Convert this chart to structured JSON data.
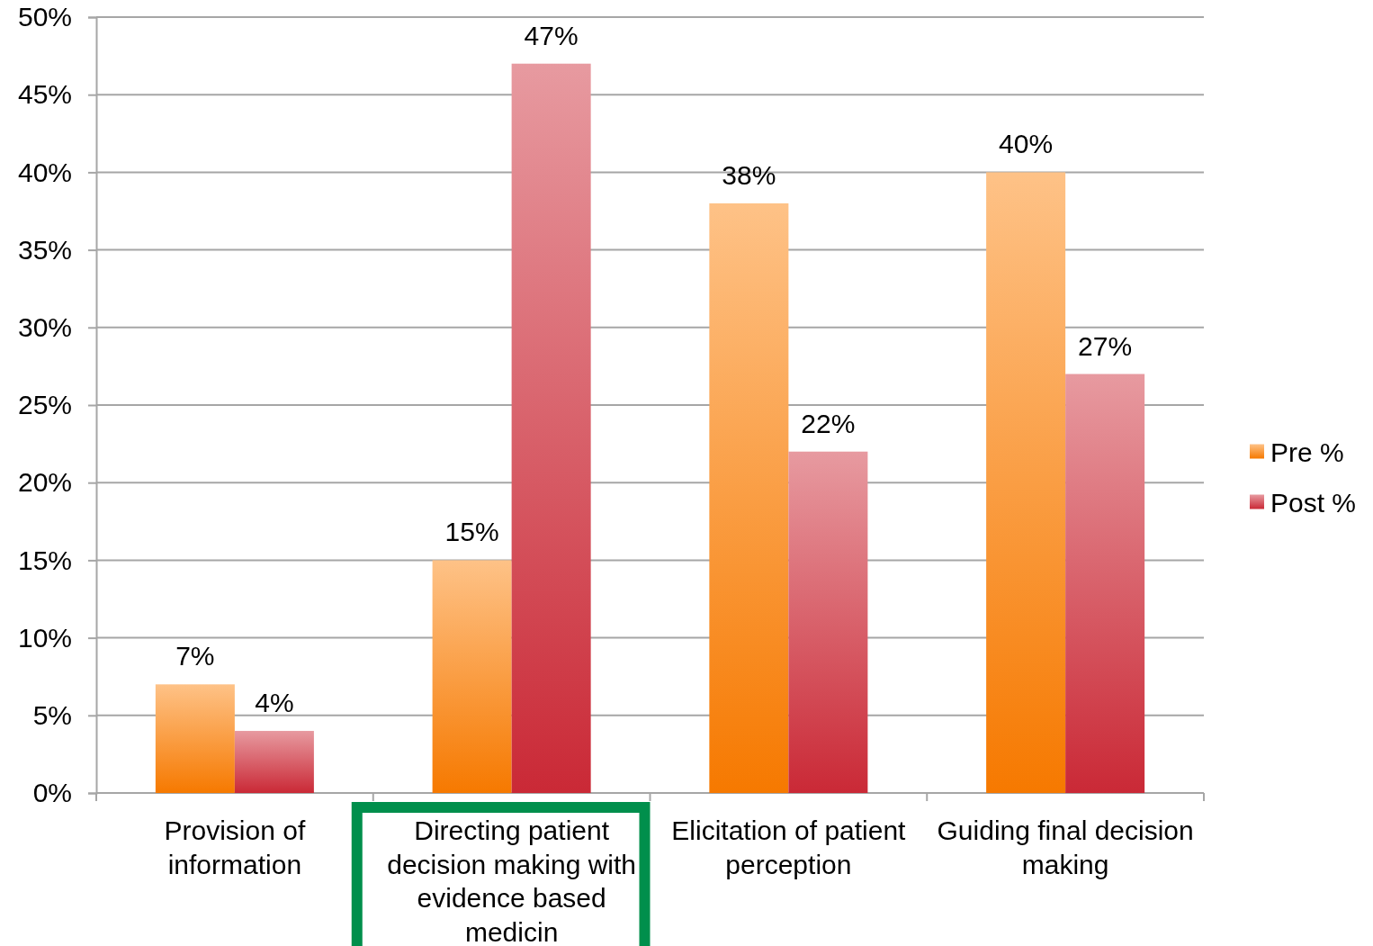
{
  "chart_data": {
    "type": "bar",
    "categories": [
      "Provision of information",
      "Directing patient decision making with evidence based medicin",
      "Elicitation of patient perception",
      "Guiding final decision making"
    ],
    "series": [
      {
        "name": "Pre %",
        "color": "#fea54f",
        "values": [
          7,
          15,
          38,
          40
        ],
        "value_labels": [
          "7%",
          "15%",
          "38%",
          "40%"
        ]
      },
      {
        "name": "Post %",
        "color": "#dc6d76",
        "values": [
          4,
          47,
          22,
          27
        ],
        "value_labels": [
          "4%",
          "47%",
          "22%",
          "27%"
        ]
      }
    ],
    "ylim": [
      0,
      50
    ],
    "yticks": [
      {
        "value": 0,
        "label": "0%"
      },
      {
        "value": 5,
        "label": "5%"
      },
      {
        "value": 10,
        "label": "10%"
      },
      {
        "value": 15,
        "label": "15%"
      },
      {
        "value": 20,
        "label": "20%"
      },
      {
        "value": 25,
        "label": "25%"
      },
      {
        "value": 30,
        "label": "30%"
      },
      {
        "value": 35,
        "label": "35%"
      },
      {
        "value": 40,
        "label": "40%"
      },
      {
        "value": 45,
        "label": "45%"
      },
      {
        "value": 50,
        "label": "50%"
      }
    ],
    "grid": "y",
    "legend": "right"
  }
}
